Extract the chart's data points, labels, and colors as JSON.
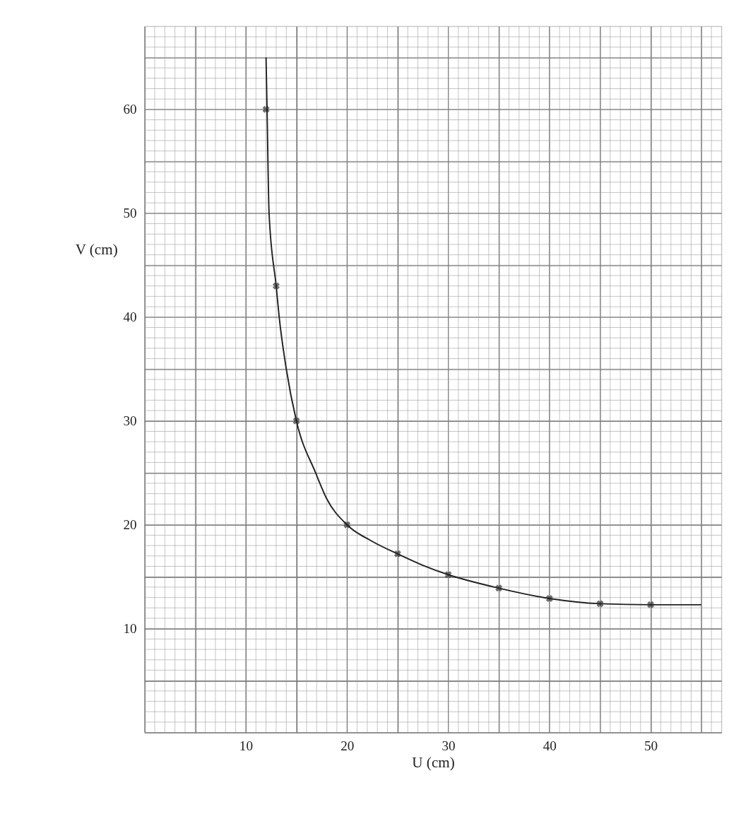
{
  "chart_data": {
    "type": "scatter",
    "xlabel": "U (cm)",
    "ylabel": "V (cm)",
    "xlim": [
      0,
      57
    ],
    "ylim": [
      0,
      68
    ],
    "xticks": [
      {
        "value": 5,
        "label": null
      },
      10,
      {
        "value": 15,
        "label": null
      },
      20,
      {
        "value": 25,
        "label": null
      },
      30,
      {
        "value": 35,
        "label": null
      },
      40,
      {
        "value": 45,
        "label": null
      },
      50,
      {
        "value": 55,
        "label": null
      }
    ],
    "yticks": [
      {
        "value": 5,
        "label": null
      },
      10,
      {
        "value": 15,
        "label": null
      },
      20,
      {
        "value": 25,
        "label": null
      },
      30,
      {
        "value": 35,
        "label": null
      },
      40,
      {
        "value": 45,
        "label": null
      },
      50,
      {
        "value": 55,
        "label": null
      },
      60,
      {
        "value": 65,
        "label": null
      }
    ],
    "grid": true,
    "marker": "cross",
    "series": [
      {
        "color": "#333333",
        "x": [
          12,
          13,
          15,
          20,
          25,
          30,
          35,
          40,
          45,
          50
        ],
        "values": [
          60,
          43,
          30,
          20,
          17.2,
          15.2,
          13.9,
          12.9,
          12.4,
          12.3
        ]
      },
      {
        "type": "line",
        "color": "#222222",
        "line_style": "solid",
        "marker": "none",
        "x": [
          12,
          12.1,
          12.3,
          13,
          13.3,
          14,
          15,
          16.9,
          18,
          20,
          22.5,
          25,
          27.5,
          30,
          35,
          40,
          45,
          50,
          55
        ],
        "values": [
          65,
          60,
          50,
          43,
          40,
          35,
          30,
          25,
          22.5,
          20,
          18.4,
          17.2,
          16.1,
          15.2,
          13.9,
          12.9,
          12.4,
          12.3,
          12.3
        ]
      }
    ]
  }
}
